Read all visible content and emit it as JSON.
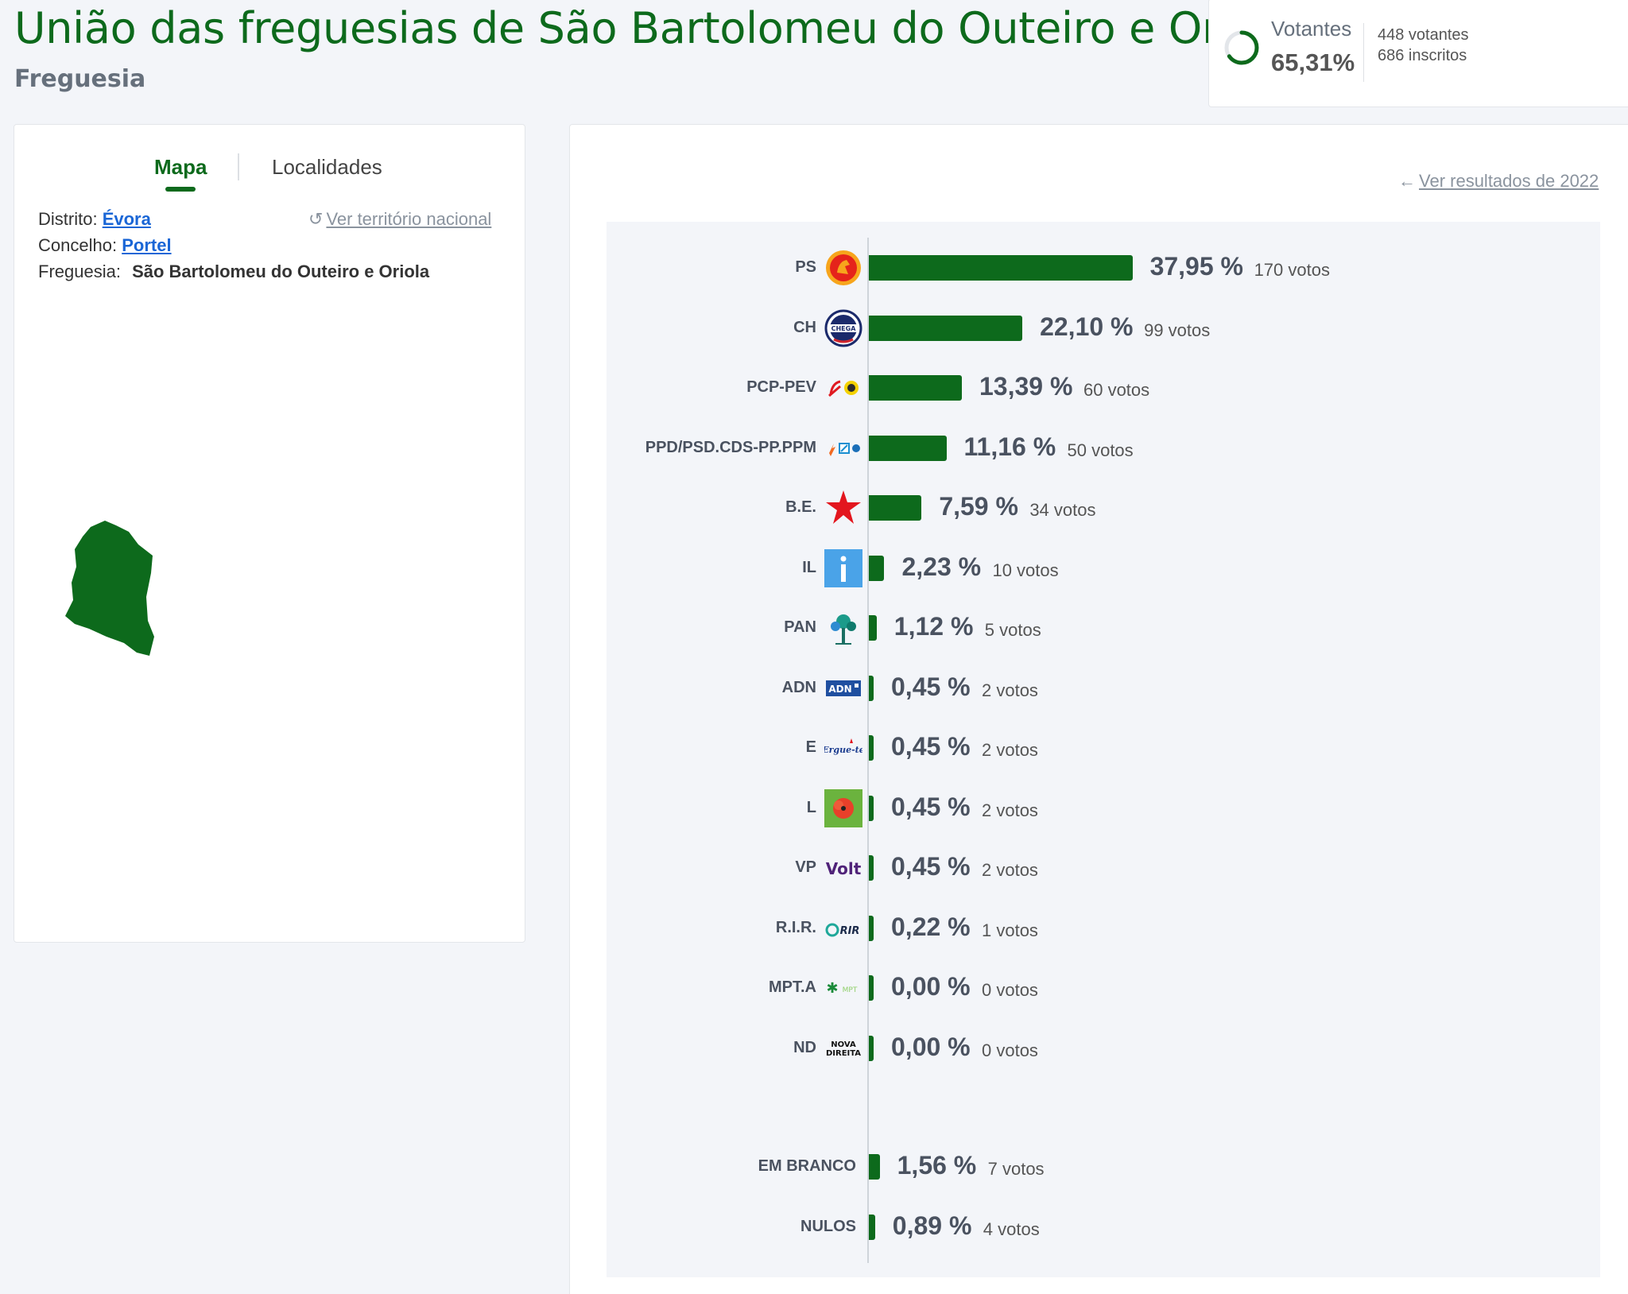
{
  "header": {
    "title": "União das freguesias de São Bartolomeu do Outeiro e Oriola",
    "subtitle": "Freguesia"
  },
  "turnout": {
    "label": "Votantes",
    "percent": "65,31%",
    "fraction": 0.6531,
    "voters": "448 votantes",
    "registered": "686 inscritos"
  },
  "left_panel": {
    "tabs": [
      {
        "label": "Mapa",
        "active": true
      },
      {
        "label": "Localidades",
        "active": false
      }
    ],
    "district_label": "Distrito:",
    "district_value": "Évora",
    "county_label": "Concelho:",
    "county_value": "Portel",
    "parish_label": "Freguesia:",
    "parish_value": "São Bartolomeu do Outeiro e Oriola",
    "national_link": "Ver território nacional"
  },
  "right_panel": {
    "previous_link": "Ver resultados de 2022"
  },
  "colors": {
    "accent": "#0d6a1c",
    "link": "#1a66d6"
  },
  "chart_data": {
    "type": "bar",
    "orientation": "horizontal",
    "categories": [
      "PS",
      "CH",
      "PCP-PEV",
      "PPD/PSD.CDS-PP.PPM",
      "B.E.",
      "IL",
      "PAN",
      "ADN",
      "E",
      "L",
      "VP",
      "R.I.R.",
      "MPT.A",
      "ND",
      "EM BRANCO",
      "NULOS"
    ],
    "values": [
      37.95,
      22.1,
      13.39,
      11.16,
      7.59,
      2.23,
      1.12,
      0.45,
      0.45,
      0.45,
      0.45,
      0.22,
      0.0,
      0.0,
      1.56,
      0.89
    ],
    "value_labels": [
      "37,95 %",
      "22,10 %",
      "13,39 %",
      "11,16 %",
      "7,59 %",
      "2,23 %",
      "1,12 %",
      "0,45 %",
      "0,45 %",
      "0,45 %",
      "0,45 %",
      "0,22 %",
      "0,00 %",
      "0,00 %",
      "1,56 %",
      "0,89 %"
    ],
    "votes": [
      "170 votos",
      "99 votos",
      "60 votos",
      "50 votos",
      "34 votos",
      "10 votos",
      "5 votos",
      "2 votos",
      "2 votos",
      "2 votos",
      "2 votos",
      "1 votos",
      "0 votos",
      "0 votos",
      "7 votos",
      "4 votos"
    ],
    "logos": [
      "ps-logo",
      "chega-logo",
      "cdu-logo",
      "ad-logo",
      "be-star-logo",
      "il-logo",
      "pan-tree-logo",
      "adn-logo",
      "erguete-logo",
      "livre-poppy-logo",
      "volt-logo",
      "rir-logo",
      "mpt-logo",
      "nova-direita-logo",
      "",
      ""
    ],
    "logo_texts": {
      "CH": "CHEGA",
      "ADN": "ADN",
      "E": "Ergue-te",
      "VP": "Volt",
      "R.I.R.": "RIR",
      "MPT.A": "MPT",
      "ND": "NOVA DIREITA",
      "IL": "i"
    },
    "xlabel": "",
    "ylabel": "",
    "xlim": [
      0,
      38
    ]
  }
}
